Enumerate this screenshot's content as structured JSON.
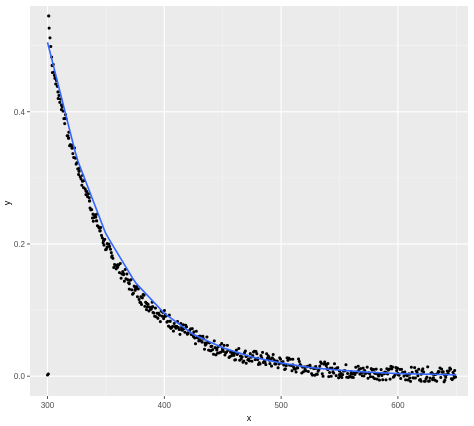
{
  "chart_data": {
    "type": "scatter",
    "title": "",
    "xlabel": "x",
    "ylabel": "y",
    "xlim": [
      285,
      660
    ],
    "ylim": [
      -0.03,
      0.56
    ],
    "x_ticks": [
      300,
      400,
      500,
      600
    ],
    "y_ticks": [
      0.0,
      0.2,
      0.4
    ],
    "x_tick_labels": [
      "300",
      "400",
      "500",
      "600"
    ],
    "y_tick_labels": [
      "0.0",
      "0.2",
      "0.4"
    ],
    "grid": true,
    "legend": "none",
    "panel_background": "#ebebeb",
    "point_color": "#000000",
    "fit_line_color": "#3366ff",
    "x_range": [
      300,
      650
    ],
    "fit_curve": {
      "x": [
        300,
        325,
        350,
        375,
        400,
        425,
        450,
        475,
        500,
        525,
        550,
        575,
        600,
        625,
        650
      ],
      "y": [
        0.505,
        0.33,
        0.215,
        0.142,
        0.095,
        0.063,
        0.043,
        0.029,
        0.02,
        0.013,
        0.009,
        0.006,
        0.004,
        0.003,
        0.002
      ]
    },
    "series": [
      {
        "values_note_visible": false,
        "x": [
          301,
          304,
          306,
          309,
          312,
          315,
          318,
          321,
          324,
          327,
          330,
          333,
          336,
          339,
          342,
          345,
          348,
          351,
          355,
          360,
          365,
          370,
          375,
          380,
          385,
          390,
          395,
          400,
          405,
          410,
          415,
          420,
          425,
          430,
          435,
          440,
          445,
          450,
          460,
          470,
          480,
          490,
          500,
          510,
          520,
          530,
          540,
          550,
          560,
          570,
          580,
          590,
          600,
          610,
          620,
          630,
          640,
          648
        ],
        "y": [
          0.545,
          0.47,
          0.455,
          0.43,
          0.41,
          0.39,
          0.36,
          0.345,
          0.33,
          0.31,
          0.295,
          0.28,
          0.265,
          0.245,
          0.235,
          0.22,
          0.205,
          0.195,
          0.18,
          0.165,
          0.155,
          0.14,
          0.13,
          0.12,
          0.11,
          0.105,
          0.095,
          0.09,
          0.083,
          0.075,
          0.07,
          0.065,
          0.06,
          0.055,
          0.05,
          0.045,
          0.042,
          0.04,
          0.035,
          0.03,
          0.027,
          0.024,
          0.02,
          0.017,
          0.014,
          0.012,
          0.01,
          0.008,
          0.007,
          0.006,
          0.005,
          0.005,
          0.004,
          0.003,
          0.003,
          0.003,
          0.002,
          0.002
        ]
      }
    ]
  }
}
